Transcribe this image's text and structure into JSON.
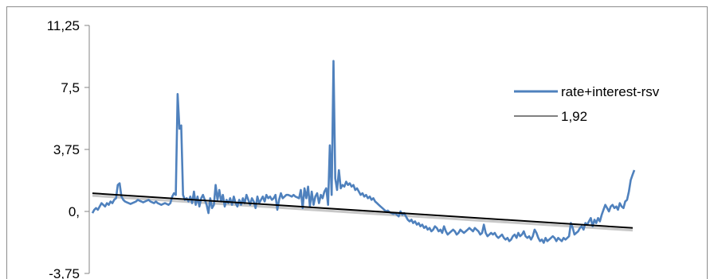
{
  "chart_data": {
    "type": "line",
    "title": "",
    "xlabel": "",
    "ylabel": "",
    "ylim": [
      -3.75,
      11.25
    ],
    "yticks": [
      "11,25",
      "7,5",
      "3,75",
      "0,",
      "-3,75"
    ],
    "ytick_values": [
      11.25,
      7.5,
      3.75,
      0,
      -3.75
    ],
    "grid": false,
    "legend_position": "right",
    "colors": {
      "series": "#4f81bd",
      "trend": "#000000",
      "trend_shadow": "#c8c8c8",
      "axis": "#868686"
    },
    "series": [
      {
        "name": "rate+interest-rsv",
        "values": [
          -0.1,
          0.1,
          0.2,
          0.1,
          0.3,
          0.5,
          0.4,
          0.3,
          0.5,
          0.4,
          0.6,
          0.5,
          0.7,
          0.8,
          1.6,
          1.7,
          0.9,
          0.7,
          0.6,
          0.55,
          0.5,
          0.45,
          0.5,
          0.55,
          0.6,
          0.7,
          0.65,
          0.6,
          0.55,
          0.6,
          0.65,
          0.7,
          0.6,
          0.55,
          0.5,
          0.6,
          0.5,
          0.45,
          0.4,
          0.45,
          0.5,
          0.45,
          0.4,
          0.5,
          0.9,
          1.1,
          1.0,
          7.1,
          5.0,
          5.2,
          1.0,
          0.7,
          0.8,
          0.6,
          0.9,
          0.5,
          1.2,
          0.4,
          0.9,
          0.3,
          0.8,
          1.0,
          0.7,
          0.4,
          -0.1,
          0.8,
          0.2,
          0.4,
          1.6,
          0.7,
          1.3,
          0.6,
          1.0,
          0.3,
          0.7,
          0.5,
          0.8,
          0.4,
          0.9,
          0.5,
          0.3,
          0.7,
          0.4,
          0.8,
          0.5,
          1.0,
          0.7,
          0.4,
          0.8,
          0.6,
          0.2,
          0.9,
          0.5,
          0.7,
          0.9,
          0.6,
          1.0,
          0.8,
          0.9,
          0.7,
          0.8,
          1.0,
          0.1,
          0.7,
          1.1,
          0.8,
          0.9,
          1.0,
          1.0,
          0.95,
          0.9,
          1.0,
          0.9,
          0.85,
          0.8,
          1.3,
          0.2,
          1.4,
          0.8,
          1.5,
          0.3,
          1.2,
          0.4,
          0.9,
          1.1,
          0.5,
          1.0,
          0.8,
          1.2,
          1.4,
          0.4,
          4.0,
          1.0,
          9.1,
          2.0,
          1.3,
          2.5,
          1.4,
          1.6,
          1.5,
          1.8,
          1.6,
          1.7,
          1.5,
          1.6,
          1.3,
          1.4,
          1.2,
          1.0,
          1.1,
          0.9,
          1.0,
          0.8,
          0.9,
          0.7,
          0.8,
          0.6,
          0.5,
          0.4,
          0.3,
          0.2,
          0.1,
          0.0,
          0.05,
          -0.05,
          -0.1,
          -0.15,
          -0.1,
          -0.2,
          -0.3,
          0.0,
          -0.2,
          -0.1,
          -0.3,
          -0.5,
          -0.6,
          -0.5,
          -0.7,
          -0.6,
          -0.8,
          -0.7,
          -0.9,
          -0.8,
          -1.0,
          -0.9,
          -1.1,
          -1.0,
          -1.2,
          -1.1,
          -0.9,
          -1.0,
          -1.2,
          -1.1,
          -1.3,
          -0.9,
          -1.2,
          -1.4,
          -1.3,
          -1.2,
          -1.1,
          -1.2,
          -1.4,
          -1.3,
          -1.1,
          -1.2,
          -1.3,
          -1.2,
          -1.1,
          -1.0,
          -1.1,
          -1.2,
          -1.0,
          -1.1,
          -1.2,
          -1.4,
          -1.3,
          -0.8,
          -1.3,
          -1.5,
          -1.4,
          -1.3,
          -1.4,
          -1.3,
          -1.5,
          -1.6,
          -1.5,
          -1.4,
          -1.6,
          -1.7,
          -1.6,
          -1.8,
          -1.7,
          -1.5,
          -1.4,
          -1.6,
          -1.3,
          -1.5,
          -1.4,
          -1.2,
          -1.5,
          -1.6,
          -1.5,
          -1.7,
          -1.5,
          -1.1,
          -1.3,
          -1.6,
          -1.8,
          -1.7,
          -1.9,
          -1.6,
          -1.8,
          -1.7,
          -1.6,
          -1.5,
          -1.6,
          -1.8,
          -1.6,
          -1.7,
          -1.8,
          -1.6,
          -1.7,
          -1.6,
          -1.5,
          -0.7,
          -1.0,
          -1.4,
          -1.3,
          -1.2,
          -1.0,
          -0.9,
          -1.1,
          -0.7,
          -0.8,
          -0.6,
          -0.4,
          -0.9,
          -0.5,
          -0.7,
          -0.4,
          -0.6,
          -0.2,
          0.1,
          0.4,
          0.2,
          0.0,
          0.3,
          0.4,
          0.2,
          0.3,
          0.1,
          0.5,
          0.3,
          0.2,
          0.6,
          0.7,
          1.2,
          1.9,
          2.2,
          2.5
        ]
      },
      {
        "name": "1,92",
        "values": [
          1.1,
          -1.0
        ]
      }
    ]
  }
}
